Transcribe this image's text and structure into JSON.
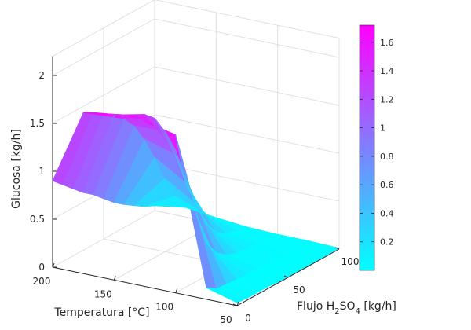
{
  "chart_data": {
    "type": "surface3d",
    "zlabel": "Glucosa [kg/h]",
    "xlabel": "Temperatura [°C]",
    "ylabel_main": "Flujo H",
    "ylabel_sub1": "2",
    "ylabel_mid": "SO",
    "ylabel_sub2": "4",
    "ylabel_tail": " [kg/h]",
    "z_ticks": [
      "0",
      "0.5",
      "1",
      "1.5",
      "2"
    ],
    "temp_ticks": [
      "200",
      "150",
      "100",
      "50"
    ],
    "flow_ticks": [
      "0",
      "50",
      "100"
    ],
    "colorbar_ticks": [
      "0.2",
      "0.4",
      "0.6",
      "0.8",
      "1",
      "1.2",
      "1.4",
      "1.6"
    ],
    "colormap": [
      "#00ffff",
      "#ff00ff"
    ],
    "temp_range": [
      50,
      200
    ],
    "flow_range": [
      0,
      100
    ],
    "z_range": [
      0,
      2
    ],
    "color_range": [
      0,
      1.72
    ],
    "temperature": [
      50,
      75,
      100,
      125,
      150,
      175,
      200
    ],
    "flow": [
      0,
      10,
      20,
      30,
      40,
      50,
      60,
      70,
      80,
      90,
      100
    ],
    "glucose": [
      [
        0.03,
        0.02,
        0.02,
        0.02,
        0.01,
        0.01,
        0.01,
        0.01,
        0.01,
        0.01,
        0.01
      ],
      [
        0.12,
        0.05,
        0.04,
        0.03,
        0.02,
        0.02,
        0.02,
        0.02,
        0.02,
        0.02,
        0.02
      ],
      [
        1.65,
        1.2,
        0.7,
        0.35,
        0.18,
        0.1,
        0.06,
        0.05,
        0.04,
        0.03,
        0.02
      ],
      [
        1.72,
        1.64,
        1.5,
        1.25,
        0.9,
        0.55,
        0.3,
        0.15,
        0.08,
        0.05,
        0.03
      ],
      [
        1.7,
        1.66,
        1.6,
        1.55,
        1.45,
        1.25,
        0.95,
        0.6,
        0.32,
        0.15,
        0.06
      ],
      [
        1.68,
        1.62,
        1.55,
        1.48,
        1.38,
        1.25,
        1.05,
        0.8,
        0.52,
        0.28,
        0.1
      ],
      [
        0.9,
        0.8,
        0.7,
        0.6,
        0.52,
        0.42,
        0.32,
        0.24,
        0.17,
        0.1,
        0.05
      ]
    ],
    "grid": true
  }
}
